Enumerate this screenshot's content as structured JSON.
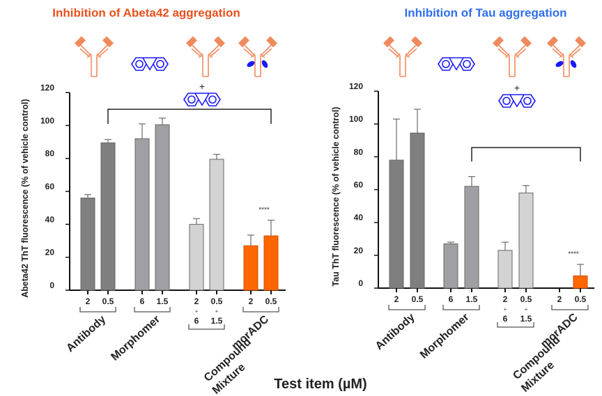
{
  "xlabel": "Test item (µM)",
  "colors": {
    "antibody": "#7f7f7f",
    "morphomer": "#a0a0a4",
    "mixture": "#d3d3d3",
    "moradc": "#ff6600",
    "title_left": "#e8501e",
    "title_right": "#2f6ef0",
    "icon_antibody": "#f08a5d",
    "icon_molecule": "#1a1aff"
  },
  "chart_data": [
    {
      "type": "bar",
      "title": "Inhibition of Abeta42 aggregation",
      "ylabel": "Abeta42 ThT fluorescence (% of vehicle control)",
      "xlabel": "Test item (µM)",
      "ylim": [
        0,
        120
      ],
      "yticks": [
        "0",
        "20",
        "40",
        "60",
        "80",
        "100",
        "120"
      ],
      "groups": [
        {
          "name": "Antibody",
          "labels": [
            "2",
            "0.5"
          ],
          "values": [
            56,
            89.5
          ],
          "errors": [
            2,
            2
          ],
          "color_key": "antibody"
        },
        {
          "name": "Morphomer",
          "labels": [
            "6",
            "1.5"
          ],
          "values": [
            92,
            100.5
          ],
          "errors": [
            9,
            4
          ],
          "color_key": "morphomer"
        },
        {
          "name": "Compound Mixture",
          "name_lines": [
            "Compound",
            "Mixture"
          ],
          "labels": [
            "2",
            "0.5"
          ],
          "labels2": [
            "6",
            "1.5"
          ],
          "plus": "+",
          "values": [
            40,
            79.5
          ],
          "errors": [
            3.5,
            3
          ],
          "color_key": "mixture"
        },
        {
          "name": "morADC",
          "labels": [
            "2",
            "0.5"
          ],
          "values": [
            27,
            33
          ],
          "errors": [
            6.5,
            9.5
          ],
          "color_key": "moradc"
        }
      ],
      "annotation": "****",
      "bracket_plus": "+"
    },
    {
      "type": "bar",
      "title": "Inhibition of Tau aggregation",
      "ylabel": "Tau ThT fluorescence (% of vehicle control)",
      "xlabel": "Test item (µM)",
      "ylim": [
        0,
        120
      ],
      "yticks": [
        "0",
        "20",
        "40",
        "60",
        "80",
        "100",
        "120"
      ],
      "groups": [
        {
          "name": "Antibody",
          "labels": [
            "2",
            "0.5"
          ],
          "values": [
            78,
            94.5
          ],
          "errors": [
            25,
            14.5
          ],
          "color_key": "antibody"
        },
        {
          "name": "Morphomer",
          "labels": [
            "6",
            "1.5"
          ],
          "values": [
            27,
            62
          ],
          "errors": [
            1,
            6
          ],
          "color_key": "morphomer"
        },
        {
          "name": "Compound Mixture",
          "name_lines": [
            "Compound",
            "Mixture"
          ],
          "labels": [
            "2",
            "0.5"
          ],
          "labels2": [
            "6",
            "1.5"
          ],
          "plus": "+",
          "values": [
            23,
            58
          ],
          "errors": [
            5,
            4.5
          ],
          "color_key": "mixture"
        },
        {
          "name": "morADC",
          "labels": [
            "2",
            "0.5"
          ],
          "values": [
            0,
            7.5
          ],
          "errors": [
            0,
            7
          ],
          "color_key": "moradc"
        }
      ],
      "annotation": "****",
      "bracket_plus": "+"
    }
  ]
}
